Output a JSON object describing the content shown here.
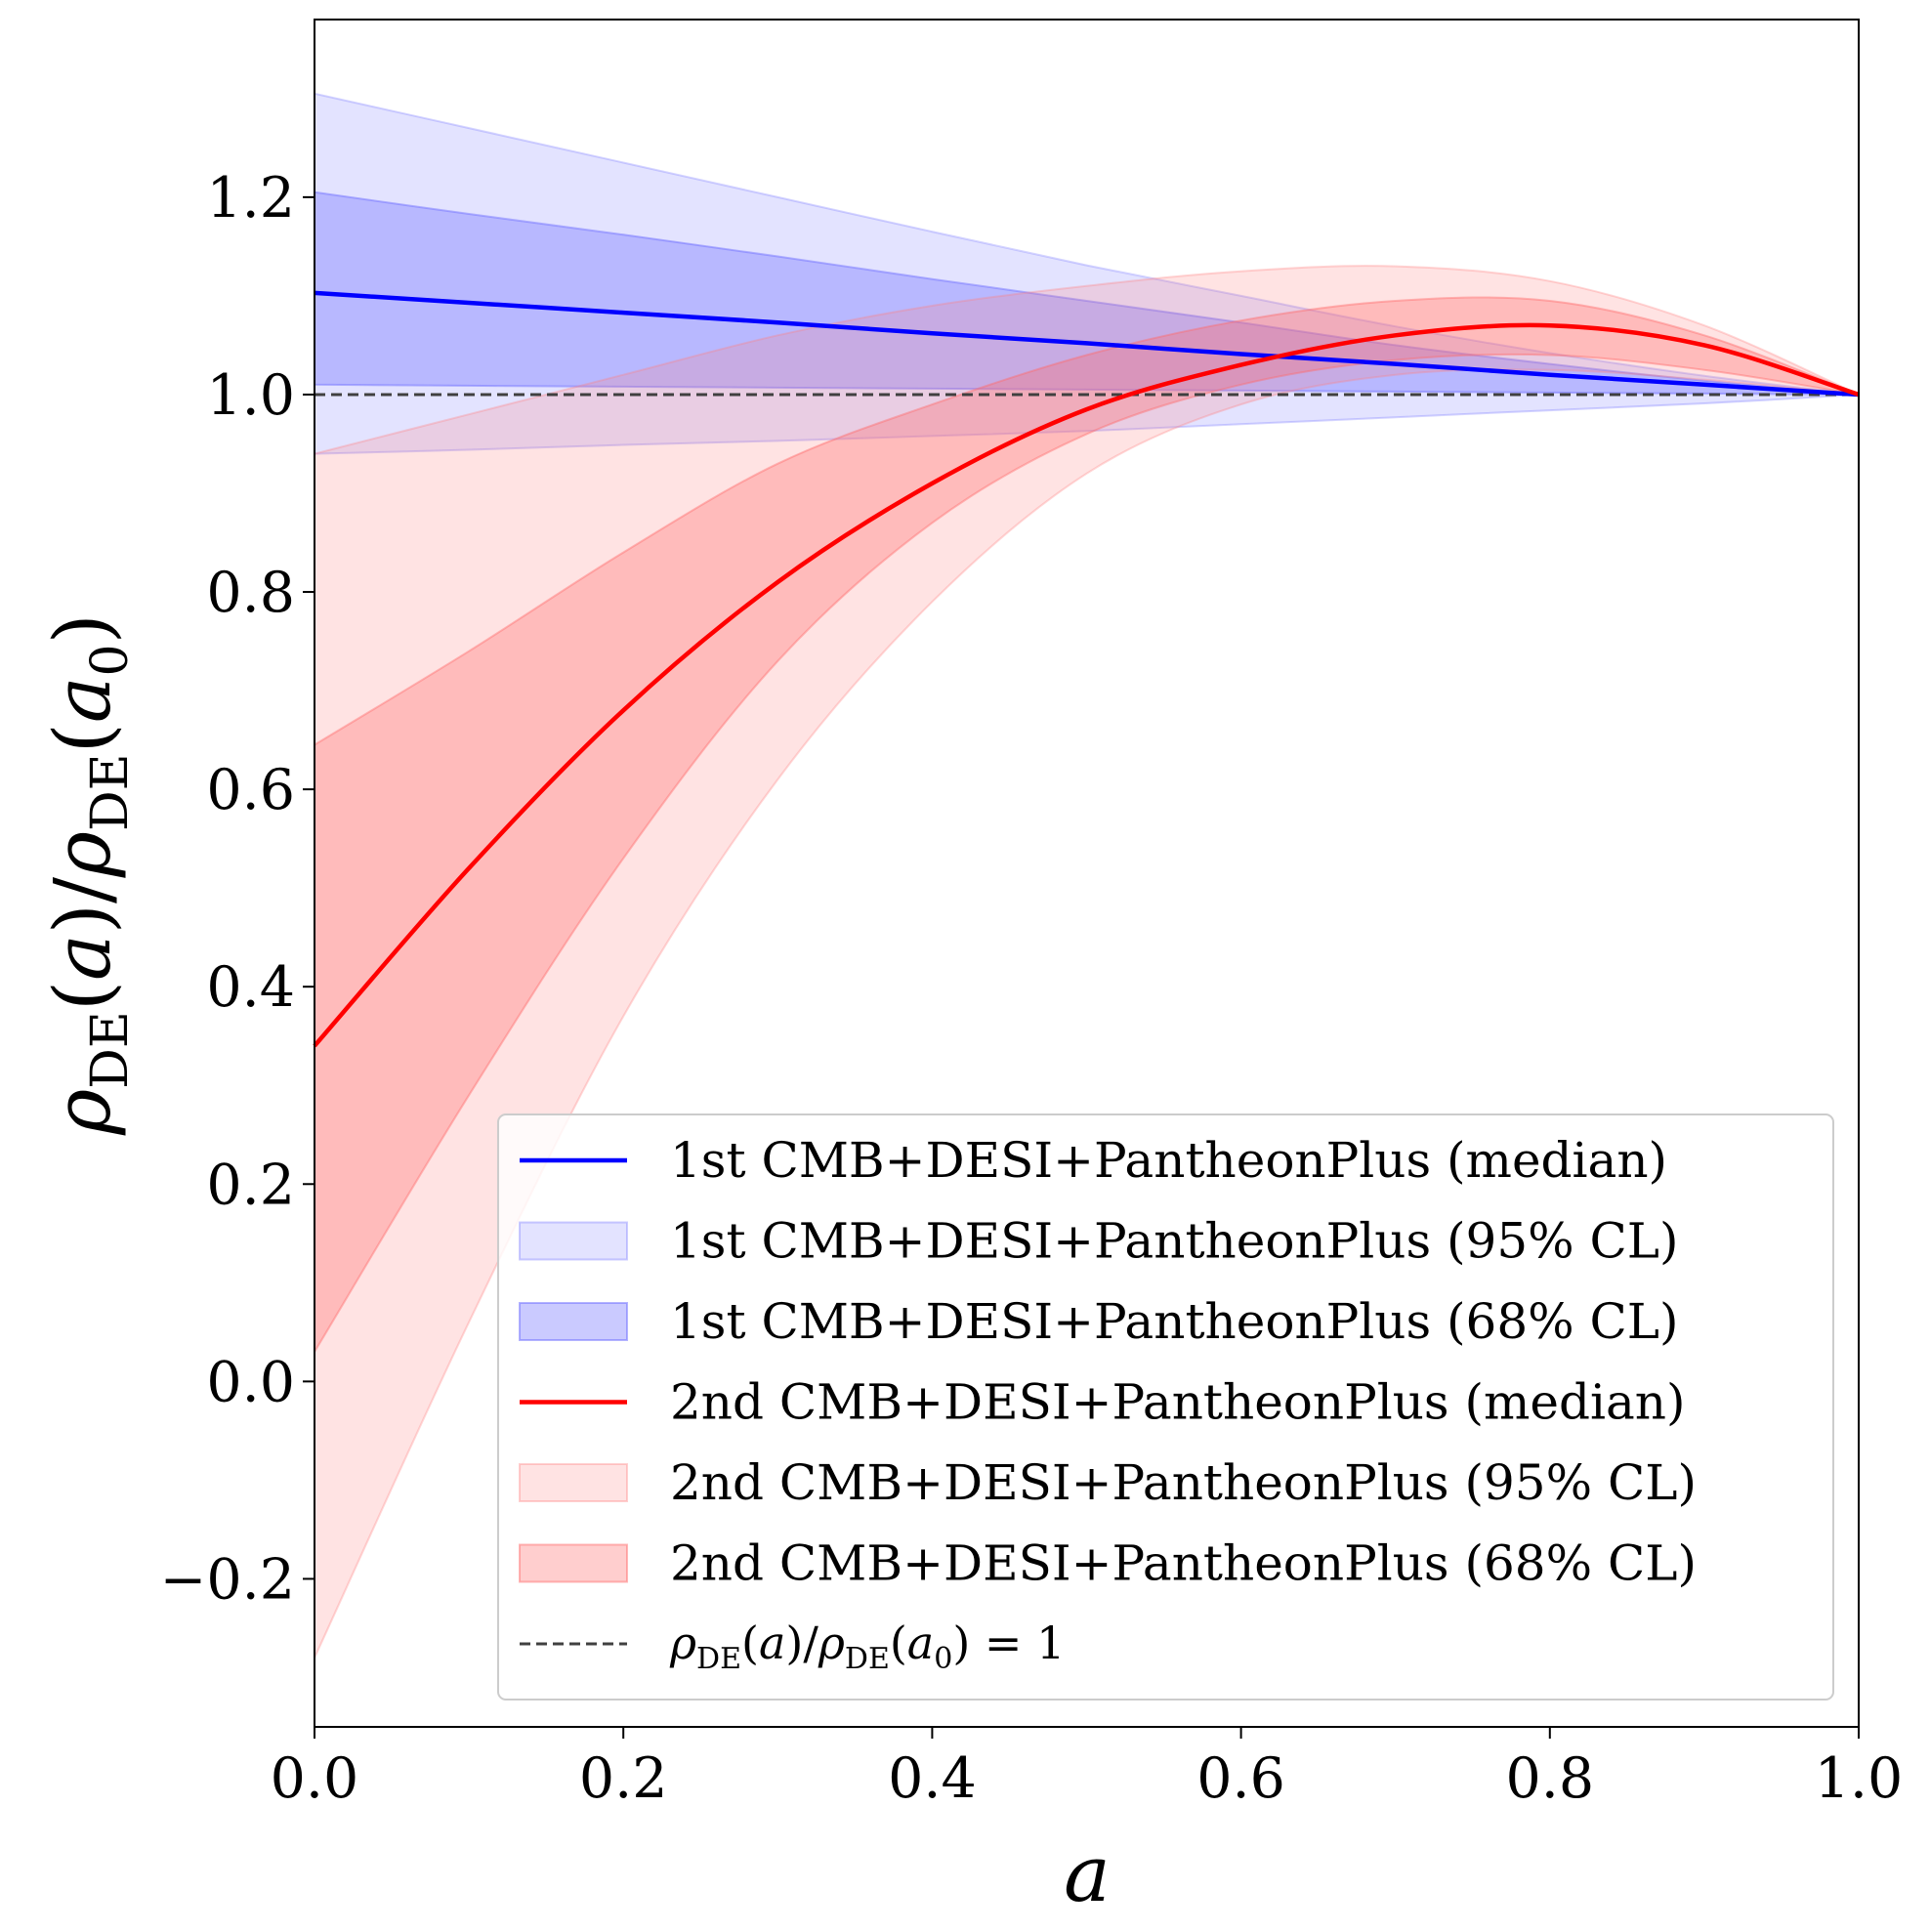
{
  "chart_data": {
    "type": "line",
    "xlabel": "a",
    "ylabel": {
      "num_symbol": "ρ",
      "num_sub": "DE",
      "num_arg": "a",
      "den_symbol": "ρ",
      "den_sub": "DE",
      "den_arg": "a",
      "den_arg_sub": "0"
    },
    "xlim": [
      0.0,
      1.0
    ],
    "ylim": [
      -0.35,
      1.38
    ],
    "xticks": [
      "0.0",
      "0.2",
      "0.4",
      "0.6",
      "0.8",
      "1.0"
    ],
    "xtick_values": [
      0.0,
      0.2,
      0.4,
      0.6,
      0.8,
      1.0
    ],
    "yticks": [
      "−0.2",
      "0.0",
      "0.2",
      "0.4",
      "0.6",
      "0.8",
      "1.0",
      "1.2"
    ],
    "ytick_values": [
      -0.2,
      0.0,
      0.2,
      0.4,
      0.6,
      0.8,
      1.0,
      1.2
    ],
    "x": [
      0.0,
      0.1,
      0.2,
      0.3,
      0.4,
      0.5,
      0.6,
      0.7,
      0.8,
      0.9,
      1.0
    ],
    "bands": [
      {
        "name": "1st CMB+DESI+PantheonPlus (95% CL)",
        "color": "#6b6bff",
        "opacity": 0.19,
        "lower": [
          0.94,
          0.944,
          0.949,
          0.953,
          0.958,
          0.963,
          0.97,
          0.977,
          0.984,
          0.991,
          1.0
        ],
        "upper": [
          1.305,
          1.27,
          1.235,
          1.2,
          1.165,
          1.131,
          1.1,
          1.069,
          1.042,
          1.019,
          1.0
        ]
      },
      {
        "name": "1st CMB+DESI+PantheonPlus (68% CL)",
        "color": "#6b6bff",
        "opacity": 0.36,
        "lower": [
          1.01,
          1.009,
          1.008,
          1.007,
          1.006,
          1.005,
          1.004,
          1.003,
          1.002,
          1.001,
          1.0
        ],
        "upper": [
          1.205,
          1.183,
          1.162,
          1.14,
          1.117,
          1.095,
          1.073,
          1.05,
          1.031,
          1.014,
          1.0
        ]
      },
      {
        "name": "2nd CMB+DESI+PantheonPlus (95% CL)",
        "color": "#ff8080",
        "opacity": 0.22,
        "lower": [
          -0.28,
          0.06,
          0.37,
          0.61,
          0.79,
          0.92,
          0.99,
          1.02,
          1.025,
          1.015,
          1.0
        ],
        "upper": [
          0.94,
          0.98,
          1.02,
          1.06,
          1.09,
          1.11,
          1.125,
          1.13,
          1.115,
          1.07,
          1.0
        ]
      },
      {
        "name": "2nd CMB+DESI+PantheonPlus (68% CL)",
        "color": "#ff6a6a",
        "opacity": 0.33,
        "lower": [
          0.03,
          0.29,
          0.53,
          0.73,
          0.87,
          0.96,
          1.01,
          1.035,
          1.04,
          1.025,
          1.0
        ],
        "upper": [
          0.645,
          0.74,
          0.84,
          0.93,
          0.99,
          1.04,
          1.075,
          1.095,
          1.095,
          1.06,
          1.0
        ]
      }
    ],
    "series": [
      {
        "name": "1st CMB+DESI+PantheonPlus (median)",
        "color": "#0000ff",
        "values": [
          1.103,
          1.093,
          1.083,
          1.073,
          1.062,
          1.052,
          1.041,
          1.031,
          1.02,
          1.01,
          1.0
        ]
      },
      {
        "name": "2nd CMB+DESI+PantheonPlus (median)",
        "color": "#ff0000",
        "values": [
          0.34,
          0.52,
          0.68,
          0.81,
          0.91,
          0.985,
          1.03,
          1.06,
          1.07,
          1.05,
          1.0
        ]
      }
    ],
    "reference_line": {
      "y": 1.0,
      "color": "#404040",
      "style": "dashed"
    },
    "legend": {
      "location": "lower-right",
      "entries": [
        {
          "label": "1st CMB+DESI+PantheonPlus (median)",
          "kind": "line",
          "color": "#0000ff"
        },
        {
          "label": "1st CMB+DESI+PantheonPlus (95% CL)",
          "kind": "patch",
          "color": "#6b6bff",
          "opacity": 0.19
        },
        {
          "label": "1st CMB+DESI+PantheonPlus (68% CL)",
          "kind": "patch",
          "color": "#6b6bff",
          "opacity": 0.36
        },
        {
          "label": "2nd CMB+DESI+PantheonPlus (median)",
          "kind": "line",
          "color": "#ff0000"
        },
        {
          "label": "2nd CMB+DESI+PantheonPlus (95% CL)",
          "kind": "patch",
          "color": "#ff8080",
          "opacity": 0.22
        },
        {
          "label": "2nd CMB+DESI+PantheonPlus (68% CL)",
          "kind": "patch",
          "color": "#ff6a6a",
          "opacity": 0.33
        },
        {
          "label": "",
          "kind": "dashed",
          "color": "#404040",
          "math": {
            "symbol": "ρ",
            "sub": "DE",
            "arg": "a",
            "den_arg": "a",
            "den_arg_sub": "0",
            "rhs": "1"
          }
        }
      ]
    }
  }
}
